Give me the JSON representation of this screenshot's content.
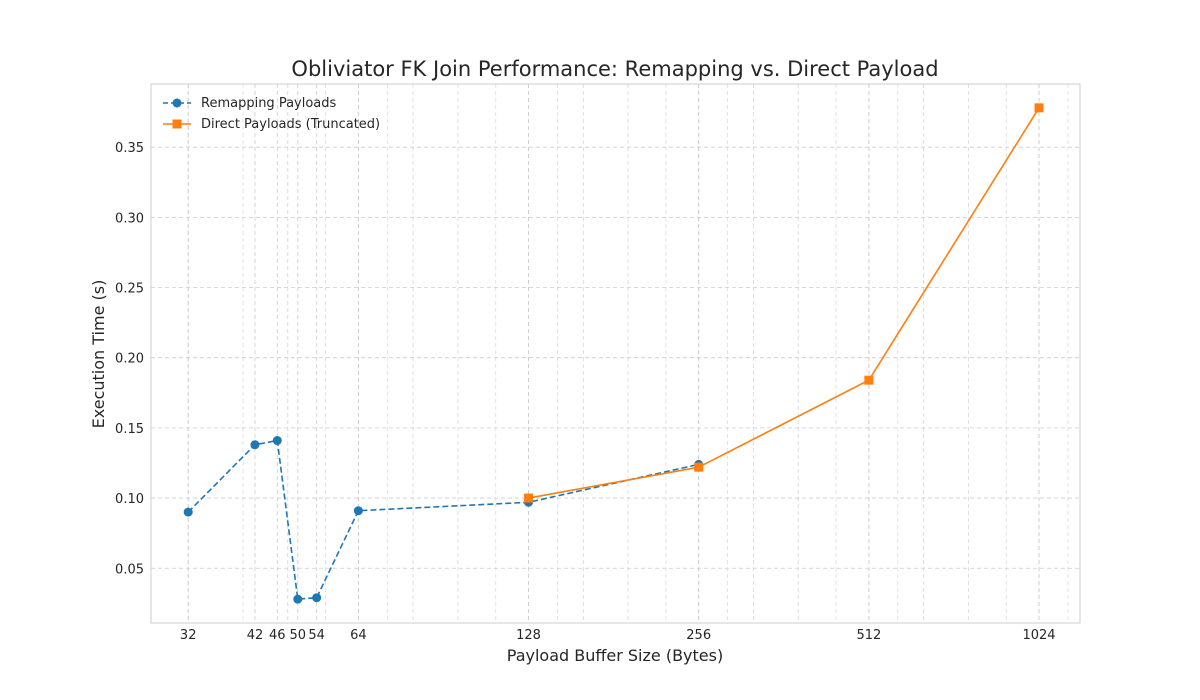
{
  "chart_data": {
    "type": "line",
    "title": "Obliviator FK Join Performance: Remapping vs. Direct Payload",
    "xlabel": "Payload Buffer Size (Bytes)",
    "ylabel": "Execution Time (s)",
    "x_scale": "log2",
    "xlim": [
      27.5,
      1210
    ],
    "ylim": [
      0.011,
      0.395
    ],
    "x_ticks": [
      32,
      42,
      46,
      50,
      54,
      64,
      128,
      256,
      512,
      1024
    ],
    "y_ticks": [
      0.05,
      0.1,
      0.15,
      0.2,
      0.25,
      0.3,
      0.35
    ],
    "y_tick_labels": [
      "0.05",
      "0.10",
      "0.15",
      "0.20",
      "0.25",
      "0.30",
      "0.35"
    ],
    "grid": true,
    "legend_position": "top-left",
    "series": [
      {
        "name": "Remapping Payloads",
        "color": "#1f77b4",
        "linestyle": "dashed",
        "marker": "circle",
        "x": [
          32,
          42,
          46,
          50,
          54,
          64,
          128,
          256
        ],
        "y": [
          0.09,
          0.138,
          0.141,
          0.028,
          0.029,
          0.091,
          0.097,
          0.124
        ]
      },
      {
        "name": "Direct Payloads (Truncated)",
        "color": "#ff7f0e",
        "linestyle": "solid",
        "marker": "square",
        "x": [
          128,
          256,
          512,
          1024
        ],
        "y": [
          0.1,
          0.122,
          0.184,
          0.378
        ]
      }
    ]
  }
}
